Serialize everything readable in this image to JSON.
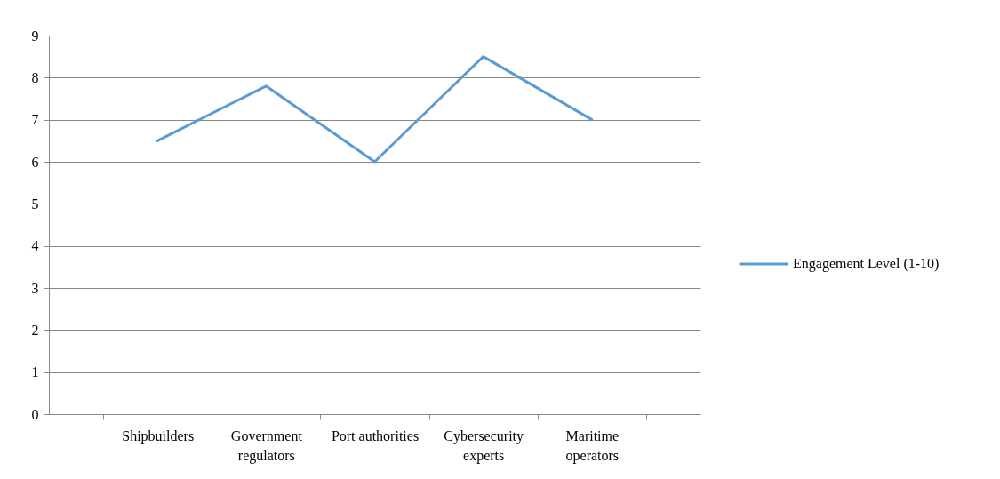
{
  "chart_data": {
    "type": "line",
    "categories": [
      "Shipbuilders",
      "Government regulators",
      "Port authorities",
      "Cybersecurity experts",
      "Maritime operators"
    ],
    "series": [
      {
        "name": "Engagement Level (1-10)",
        "color": "#5b9bd5",
        "values": [
          6.5,
          7.8,
          6.0,
          8.5,
          7.0
        ]
      }
    ],
    "ylim": [
      0,
      9
    ],
    "yticks": [
      0,
      1,
      2,
      3,
      4,
      5,
      6,
      7,
      8,
      9
    ],
    "grid": "y",
    "legend": "right",
    "marker": "none",
    "line_style": "solid"
  }
}
